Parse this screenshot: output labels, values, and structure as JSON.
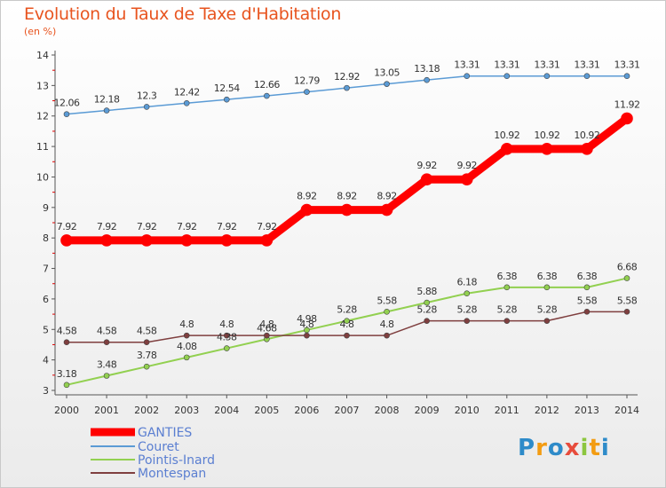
{
  "chart_data": {
    "type": "line",
    "title": "Evolution du Taux de Taxe d'Habitation",
    "ylabel": "(en %)",
    "x": [
      "2000",
      "2001",
      "2002",
      "2003",
      "2004",
      "2005",
      "2006",
      "2007",
      "2008",
      "2009",
      "2010",
      "2011",
      "2012",
      "2013",
      "2014"
    ],
    "ylim": [
      3,
      14
    ],
    "yticks": [
      3,
      4,
      5,
      6,
      7,
      8,
      9,
      10,
      11,
      12,
      13,
      14
    ],
    "grid": false,
    "legend_position": "bottom-left",
    "series": [
      {
        "name": "GANTIES",
        "color": "#ff0000",
        "values": [
          7.92,
          7.92,
          7.92,
          7.92,
          7.92,
          7.92,
          8.92,
          8.92,
          8.92,
          9.92,
          9.92,
          10.92,
          10.92,
          10.92,
          11.92
        ]
      },
      {
        "name": "Couret",
        "color": "#5b9bd5",
        "values": [
          12.06,
          12.18,
          12.3,
          12.42,
          12.54,
          12.66,
          12.79,
          12.92,
          13.05,
          13.18,
          13.31,
          13.31,
          13.31,
          13.31,
          13.31
        ]
      },
      {
        "name": "Pointis-Inard",
        "color": "#92d050",
        "values": [
          3.18,
          3.48,
          3.78,
          4.08,
          4.38,
          4.68,
          4.98,
          5.28,
          5.58,
          5.88,
          6.18,
          6.38,
          6.38,
          6.38,
          6.68
        ]
      },
      {
        "name": "Montespan",
        "color": "#7f3f3f",
        "values": [
          4.58,
          4.58,
          4.58,
          4.8,
          4.8,
          4.8,
          4.8,
          4.8,
          4.8,
          5.28,
          5.28,
          5.28,
          5.28,
          5.58,
          5.58
        ]
      }
    ],
    "data_labels": {
      "GANTIES": [
        "7.92",
        "7.92",
        "7.92",
        "7.92",
        "7.92",
        "7.92",
        "8.92",
        "8.92",
        "8.92",
        "9.92",
        "9.92",
        "10.92",
        "10.92",
        "10.92",
        "11.92"
      ],
      "Couret": [
        "12.06",
        "12.18",
        "12.3",
        "12.42",
        "12.54",
        "12.66",
        "12.79",
        "12.92",
        "13.05",
        "13.18",
        "13.31",
        "13.31",
        "13.31",
        "13.31",
        "13.31"
      ],
      "Pointis-Inard": [
        "3.18",
        "3.48",
        "3.78",
        "4.08",
        "4.38",
        "4.68",
        "4.98",
        "5.28",
        "5.58",
        "5.88",
        "6.18",
        "6.38",
        "6.38",
        "6.38",
        "6.68"
      ],
      "Montespan": [
        "4.58",
        "4.58",
        "4.58",
        "4.8",
        "4.8",
        "4.8",
        "4.8",
        "4.8",
        "4.8",
        "5.28",
        "5.28",
        "5.28",
        "5.28",
        "5.58",
        "5.58"
      ]
    }
  },
  "logo": {
    "text": "Proxiti"
  }
}
